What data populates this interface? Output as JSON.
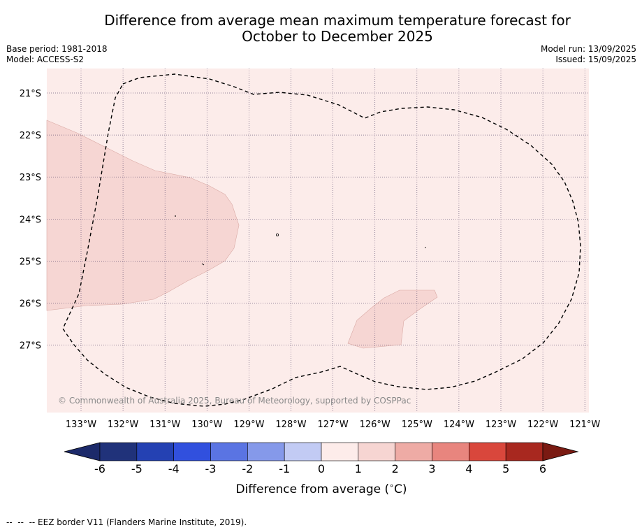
{
  "title_line1": "Difference from average mean maximum temperature forecast for",
  "title_line2": "October to December 2025",
  "info": {
    "base_period": "Base period: 1981-2018",
    "model": "Model: ACCESS-S2",
    "model_run": "Model run: 13/09/2025",
    "issued": "Issued: 15/09/2025"
  },
  "copyright": "© Commonwealth of Australia 2025, Bureau of Meteorology, supported by COSPPac",
  "map": {
    "lon_labels": [
      "133°W",
      "132°W",
      "131°W",
      "130°W",
      "129°W",
      "128°W",
      "127°W",
      "126°W",
      "125°W",
      "124°W",
      "123°W",
      "122°W",
      "121°W"
    ],
    "lat_labels": [
      "21°S",
      "22°S",
      "23°S",
      "24°S",
      "25°S",
      "26°S",
      "27°S"
    ],
    "background_category": "0 to 1",
    "anomaly_patches_category": "1 to 2"
  },
  "colorbar": {
    "label": "Difference from average ($^\\circ$C)",
    "label_display": "Difference from average (",
    "label_unit": "C)",
    "ticks": [
      "-6",
      "-5",
      "-4",
      "-3",
      "-2",
      "-1",
      "0",
      "1",
      "2",
      "3",
      "4",
      "5",
      "6"
    ],
    "colors": [
      "#20327a",
      "#2441b3",
      "#3150de",
      "#5a74e3",
      "#8599ea",
      "#c2cbf4",
      "#e9ecfb",
      "#fdecea",
      "#f6d5d2",
      "#eeaba5",
      "#e8857e",
      "#d9473c",
      "#a8281f"
    ],
    "under_color": "#1c2a6a",
    "over_color": "#7a1a12"
  },
  "footer": "--  --  -- EEZ border V11 (Flanders Marine Institute, 2019)."
}
